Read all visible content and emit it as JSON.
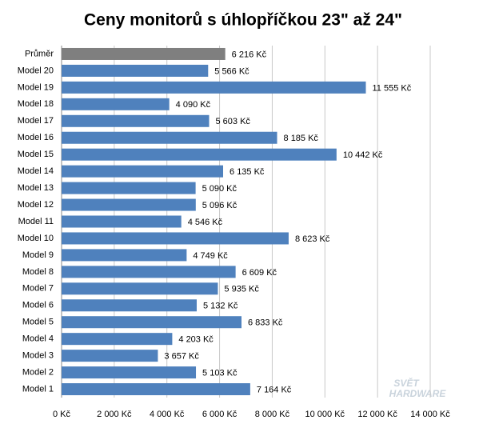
{
  "chart_data": {
    "type": "hbar",
    "title": "Ceny monitorů s úhlopříčkou 23\" až 24\"",
    "categories": [
      "Průměr",
      "Model 20",
      "Model 19",
      "Model 18",
      "Model 17",
      "Model 16",
      "Model 15",
      "Model 14",
      "Model 13",
      "Model 12",
      "Model 11",
      "Model 10",
      "Model 9",
      "Model 8",
      "Model 7",
      "Model 6",
      "Model 5",
      "Model 4",
      "Model 3",
      "Model 2",
      "Model 1"
    ],
    "values": [
      6216,
      5566,
      11555,
      4090,
      5603,
      8185,
      10442,
      6135,
      5090,
      5096,
      4546,
      8623,
      4749,
      6609,
      5935,
      5132,
      6833,
      4203,
      3657,
      5103,
      7164
    ],
    "value_labels": [
      "6 216 Kč",
      "5 566 Kč",
      "11 555 Kč",
      "4 090 Kč",
      "5 603 Kč",
      "8 185 Kč",
      "10 442 Kč",
      "6 135 Kč",
      "5 090 Kč",
      "5 096 Kč",
      "4 546 Kč",
      "8 623 Kč",
      "4 749 Kč",
      "6 609 Kč",
      "5 935 Kč",
      "5 132 Kč",
      "6 833 Kč",
      "4 203 Kč",
      "3 657 Kč",
      "5 103 Kč",
      "7 164 Kč"
    ],
    "colors": [
      "#7f7f7f",
      "#4f81bd",
      "#4f81bd",
      "#4f81bd",
      "#4f81bd",
      "#4f81bd",
      "#4f81bd",
      "#4f81bd",
      "#4f81bd",
      "#4f81bd",
      "#4f81bd",
      "#4f81bd",
      "#4f81bd",
      "#4f81bd",
      "#4f81bd",
      "#4f81bd",
      "#4f81bd",
      "#4f81bd",
      "#4f81bd",
      "#4f81bd",
      "#4f81bd"
    ],
    "xlim": [
      0,
      14000
    ],
    "xticks": [
      {
        "value": 0,
        "label": "0 Kč"
      },
      {
        "value": 2000,
        "label": "2 000 Kč"
      },
      {
        "value": 4000,
        "label": "4 000 Kč"
      },
      {
        "value": 6000,
        "label": "6 000 Kč"
      },
      {
        "value": 8000,
        "label": "8 000 Kč"
      },
      {
        "value": 10000,
        "label": "10 000 Kč"
      },
      {
        "value": 12000,
        "label": "12 000 Kč"
      },
      {
        "value": 14000,
        "label": "14 000 Kč"
      }
    ],
    "grid": true,
    "watermark": [
      "SVĚT",
      "HARDWARE"
    ]
  }
}
